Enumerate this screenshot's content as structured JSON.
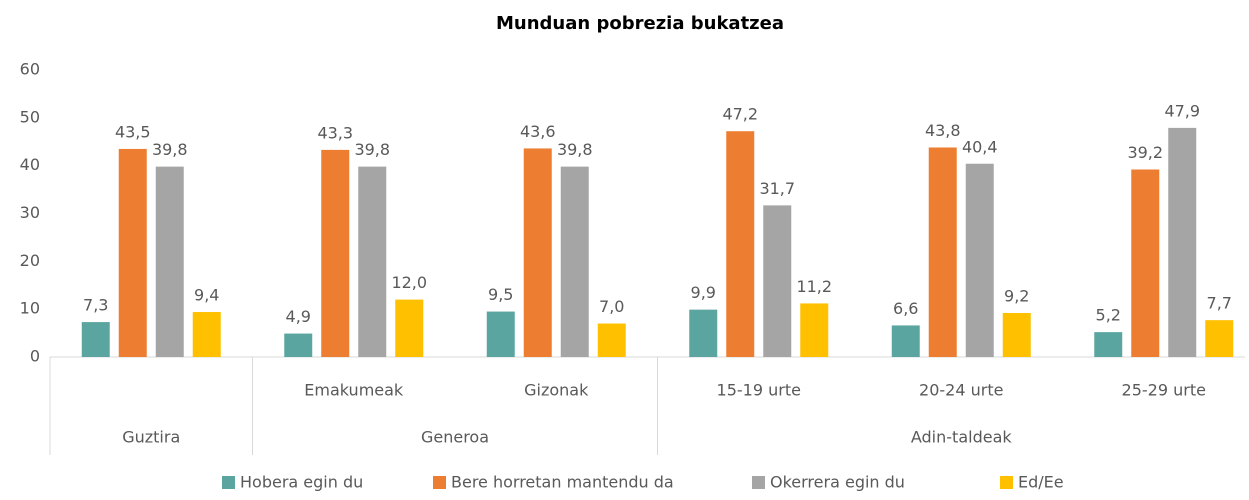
{
  "chart_data": {
    "type": "bar",
    "title": "Munduan pobrezia bukatzea",
    "groups": [
      {
        "name": "Guztira",
        "categories": [
          null
        ]
      },
      {
        "name": "Generoa",
        "categories": [
          "Emakumeak",
          "Gizonak"
        ]
      },
      {
        "name": "Adin-taldeak",
        "categories": [
          "15-19 urte",
          "20-24 urte",
          "25-29 urte"
        ]
      }
    ],
    "series": [
      {
        "name": "Hobera egin du",
        "color": "#5ba5a1",
        "values": [
          7.3,
          4.9,
          9.5,
          9.9,
          6.6,
          5.2
        ],
        "value_labels": [
          "7,3",
          "4,9",
          "9,5",
          "9,9",
          "6,6",
          "5,2"
        ]
      },
      {
        "name": "Bere horretan mantendu da",
        "color": "#ed7d31",
        "values": [
          43.5,
          43.3,
          43.6,
          47.2,
          43.8,
          39.2
        ],
        "value_labels": [
          "43,5",
          "43,3",
          "43,6",
          "47,2",
          "43,8",
          "39,2"
        ]
      },
      {
        "name": "Okerrera egin du",
        "color": "#a5a5a5",
        "values": [
          39.8,
          39.8,
          39.8,
          31.7,
          40.4,
          47.9
        ],
        "value_labels": [
          "39,8",
          "39,8",
          "39,8",
          "31,7",
          "40,4",
          "47,9"
        ]
      },
      {
        "name": "Ed/Ee",
        "color": "#ffc000",
        "values": [
          9.4,
          12.0,
          7.0,
          11.2,
          9.2,
          7.7
        ],
        "value_labels": [
          "9,4",
          "12,0",
          "7,0",
          "11,2",
          "9,2",
          "7,7"
        ]
      }
    ],
    "ylim": [
      0,
      60
    ],
    "yticks": [
      0,
      10,
      20,
      30,
      40,
      50,
      60
    ],
    "grid": false,
    "legend": "bottom"
  }
}
